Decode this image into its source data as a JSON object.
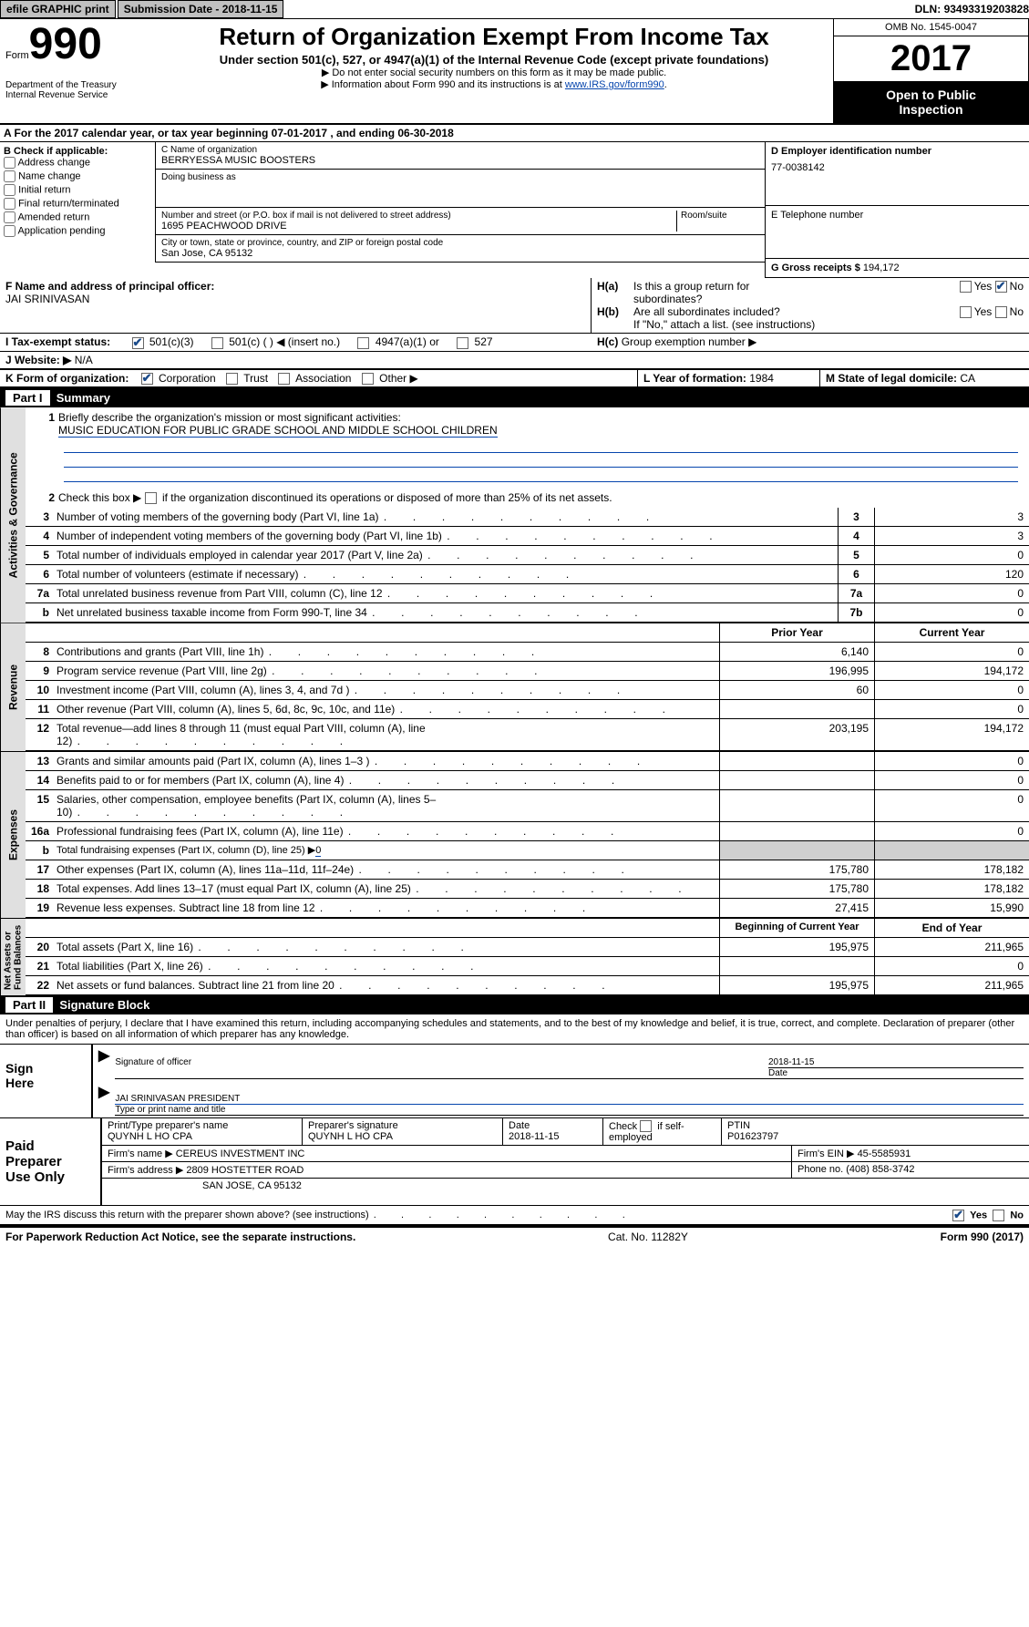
{
  "topbar": {
    "efile": "efile GRAPHIC print",
    "sub_label": "Submission Date - ",
    "sub_date": "2018-11-15",
    "dln_label": "DLN: ",
    "dln": "93493319203828"
  },
  "header": {
    "form_word": "Form",
    "form_no": "990",
    "dept": "Department of the Treasury\nInternal Revenue Service",
    "title": "Return of Organization Exempt From Income Tax",
    "sub1": "Under section 501(c), 527, or 4947(a)(1) of the Internal Revenue Code (except private foundations)",
    "sub2a": "▶ Do not enter social security numbers on this form as it may be made public.",
    "sub2b": "▶ Information about Form 990 and its instructions is at ",
    "link": "www.IRS.gov/form990",
    "omb": "OMB No. 1545-0047",
    "year": "2017",
    "open": "Open to Public\nInspection"
  },
  "rowA": "A  For the 2017 calendar year, or tax year beginning 07-01-2017   , and ending 06-30-2018",
  "B": {
    "title": "B Check if applicable:",
    "items": [
      "Address change",
      "Name change",
      "Initial return",
      "Final return/terminated",
      "Amended return",
      "Application pending"
    ]
  },
  "C": {
    "name_lbl": "C Name of organization",
    "name": "BERRYESSA MUSIC BOOSTERS",
    "dba_lbl": "Doing business as",
    "dba": "",
    "addr_lbl": "Number and street (or P.O. box if mail is not delivered to street address)",
    "room_lbl": "Room/suite",
    "addr": "1695 PEACHWOOD DRIVE",
    "city_lbl": "City or town, state or province, country, and ZIP or foreign postal code",
    "city": "San Jose, CA  95132"
  },
  "D": {
    "ein_lbl": "D Employer identification number",
    "ein": "77-0038142",
    "tel_lbl": "E Telephone number",
    "tel": "",
    "gross_lbl": "G Gross receipts $ ",
    "gross": "194,172"
  },
  "F": {
    "lbl": "F  Name and address of principal officer:",
    "name": "JAI SRINIVASAN"
  },
  "H": {
    "a": "Is this a group return for",
    "a2": "subordinates?",
    "b": "Are all subordinates included?",
    "note": "If \"No,\" attach a list. (see instructions)",
    "c": "Group exemption number ▶",
    "yes": "Yes",
    "no": "No",
    "ha": "H(a)",
    "hb": "H(b)",
    "hc": "H(c)"
  },
  "I": {
    "lbl": "I   Tax-exempt status:",
    "opts": [
      "501(c)(3)",
      "501(c) (     ) ◀ (insert no.)",
      "4947(a)(1) or",
      "527"
    ]
  },
  "J": {
    "lbl": "J  Website: ▶",
    "val": "N/A"
  },
  "K": {
    "lbl": "K Form of organization:",
    "opts": [
      "Corporation",
      "Trust",
      "Association",
      "Other ▶"
    ]
  },
  "L": {
    "lbl": "L Year of formation: ",
    "val": "1984"
  },
  "M": {
    "lbl": "M State of legal domicile: ",
    "val": "CA"
  },
  "part1": {
    "label": "Part I",
    "title": "Summary"
  },
  "gov_tab": "Activities & Governance",
  "rev_tab": "Revenue",
  "exp_tab": "Expenses",
  "net_tab": "Net Assets or\nFund Balances",
  "mission_lbl": "Briefly describe the organization's mission or most significant activities:",
  "mission": "MUSIC EDUCATION FOR PUBLIC GRADE SCHOOL AND MIDDLE SCHOOL CHILDREN",
  "s2": "Check this box ▶          if the organization discontinued its operations or disposed of more than 25% of its net assets.",
  "lines_gov": [
    {
      "n": "3",
      "t": "Number of voting members of the governing body (Part VI, line 1a)",
      "box": "3",
      "v": "3"
    },
    {
      "n": "4",
      "t": "Number of independent voting members of the governing body (Part VI, line 1b)",
      "box": "4",
      "v": "3"
    },
    {
      "n": "5",
      "t": "Total number of individuals employed in calendar year 2017 (Part V, line 2a)",
      "box": "5",
      "v": "0"
    },
    {
      "n": "6",
      "t": "Total number of volunteers (estimate if necessary)",
      "box": "6",
      "v": "120"
    },
    {
      "n": "7a",
      "t": "Total unrelated business revenue from Part VIII, column (C), line 12",
      "box": "7a",
      "v": "0"
    },
    {
      "n": "b",
      "t": "Net unrelated business taxable income from Form 990-T, line 34",
      "box": "7b",
      "v": "0"
    }
  ],
  "hdr_prior": "Prior Year",
  "hdr_current": "Current Year",
  "hdr_beg": "Beginning of Current Year",
  "hdr_end": "End of Year",
  "lines_rev": [
    {
      "n": "8",
      "t": "Contributions and grants (Part VIII, line 1h)",
      "p": "6,140",
      "c": "0"
    },
    {
      "n": "9",
      "t": "Program service revenue (Part VIII, line 2g)",
      "p": "196,995",
      "c": "194,172"
    },
    {
      "n": "10",
      "t": "Investment income (Part VIII, column (A), lines 3, 4, and 7d )",
      "p": "60",
      "c": "0"
    },
    {
      "n": "11",
      "t": "Other revenue (Part VIII, column (A), lines 5, 6d, 8c, 9c, 10c, and 11e)",
      "p": "",
      "c": "0"
    },
    {
      "n": "12",
      "t": "Total revenue—add lines 8 through 11 (must equal Part VIII, column (A), line 12)",
      "p": "203,195",
      "c": "194,172"
    }
  ],
  "lines_exp": [
    {
      "n": "13",
      "t": "Grants and similar amounts paid (Part IX, column (A), lines 1–3 )",
      "p": "",
      "c": "0"
    },
    {
      "n": "14",
      "t": "Benefits paid to or for members (Part IX, column (A), line 4)",
      "p": "",
      "c": "0"
    },
    {
      "n": "15",
      "t": "Salaries, other compensation, employee benefits (Part IX, column (A), lines 5–10)",
      "p": "",
      "c": "0"
    },
    {
      "n": "16a",
      "t": "Professional fundraising fees (Part IX, column (A), line 11e)",
      "p": "",
      "c": "0"
    }
  ],
  "line16b": {
    "n": "b",
    "t": "Total fundraising expenses (Part IX, column (D), line 25) ▶",
    "v": "0"
  },
  "lines_exp2": [
    {
      "n": "17",
      "t": "Other expenses (Part IX, column (A), lines 11a–11d, 11f–24e)",
      "p": "175,780",
      "c": "178,182"
    },
    {
      "n": "18",
      "t": "Total expenses. Add lines 13–17 (must equal Part IX, column (A), line 25)",
      "p": "175,780",
      "c": "178,182"
    },
    {
      "n": "19",
      "t": "Revenue less expenses. Subtract line 18 from line 12",
      "p": "27,415",
      "c": "15,990"
    }
  ],
  "lines_net": [
    {
      "n": "20",
      "t": "Total assets (Part X, line 16)",
      "p": "195,975",
      "c": "211,965"
    },
    {
      "n": "21",
      "t": "Total liabilities (Part X, line 26)",
      "p": "",
      "c": "0"
    },
    {
      "n": "22",
      "t": "Net assets or fund balances. Subtract line 21 from line 20",
      "p": "195,975",
      "c": "211,965"
    }
  ],
  "part2": {
    "label": "Part II",
    "title": "Signature Block"
  },
  "decl": "Under penalties of perjury, I declare that I have examined this return, including accompanying schedules and statements, and to the best of my knowledge and belief, it is true, correct, and complete. Declaration of preparer (other than officer) is based on all information of which preparer has any knowledge.",
  "sign": {
    "here": "Sign\nHere",
    "sig_lbl": "Signature of officer",
    "date_lbl": "Date",
    "date": "2018-11-15",
    "name": "JAI SRINIVASAN  PRESIDENT",
    "name_lbl": "Type or print name and title"
  },
  "paid": {
    "lbl": "Paid\nPreparer\nUse Only",
    "r1": {
      "a": "Print/Type preparer's name",
      "av": "QUYNH L HO CPA",
      "b": "Preparer's signature",
      "bv": "QUYNH L HO CPA",
      "c": "Date",
      "cv": "2018-11-15",
      "d": "Check         if self-employed",
      "e": "PTIN",
      "ev": "P01623797"
    },
    "r2": {
      "a": "Firm's name      ▶ ",
      "av": "CEREUS INVESTMENT INC",
      "b": "Firm's EIN ▶ ",
      "bv": "45-5585931"
    },
    "r3": {
      "a": "Firm's address ▶ ",
      "av": "2809 HOSTETTER ROAD",
      "b": "Phone no. ",
      "bv": "(408) 858-3742"
    },
    "r4": {
      "av": "SAN JOSE, CA  95132"
    }
  },
  "discuss": "May the IRS discuss this return with the preparer shown above? (see instructions)",
  "footer": {
    "pra": "For Paperwork Reduction Act Notice, see the separate instructions.",
    "cat": "Cat. No. 11282Y",
    "form": "Form 990 (2017)"
  }
}
